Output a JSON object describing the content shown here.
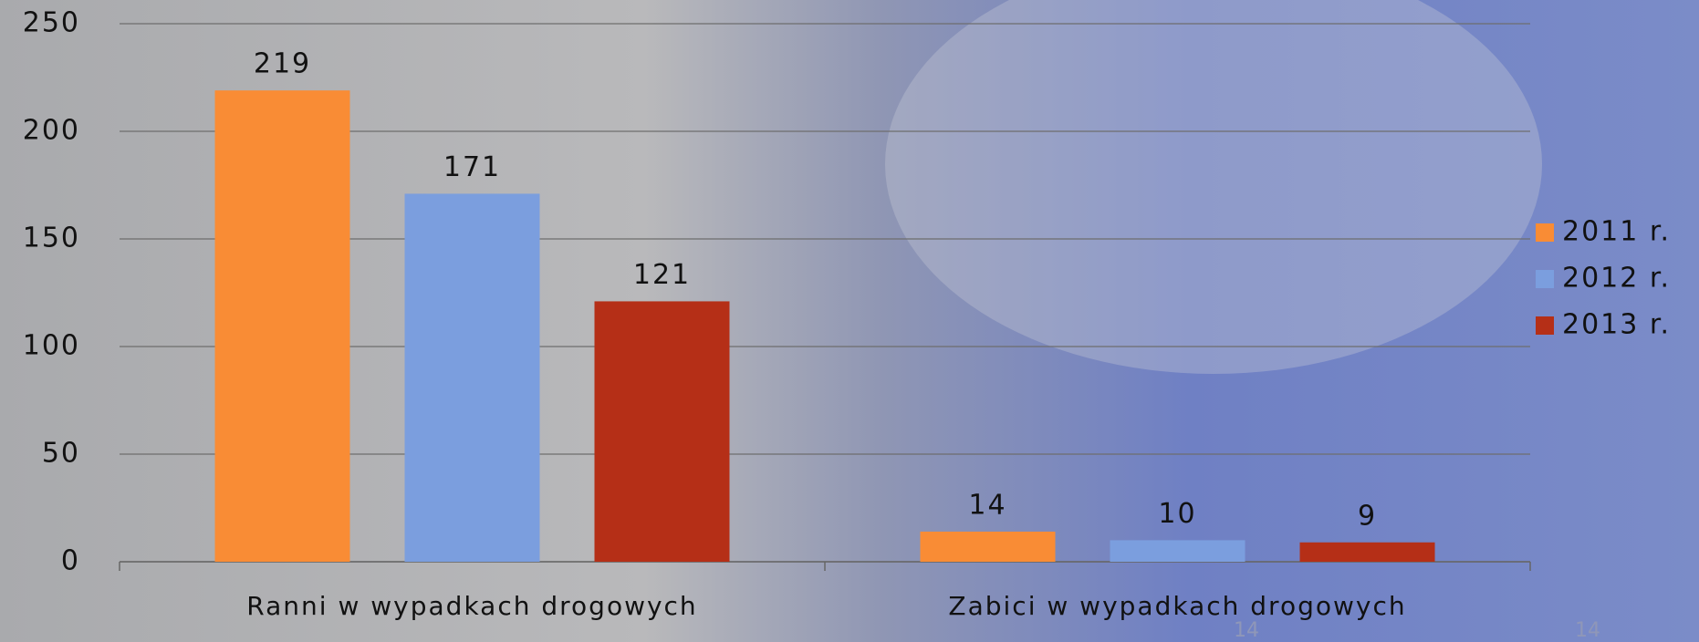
{
  "chart_data": {
    "type": "bar",
    "categories": [
      "Ranni w wypadkach drogowych",
      "Zabici w wypadkach drogowych"
    ],
    "series": [
      {
        "name": "2011 r.",
        "color": "#f98c35",
        "values": [
          219,
          14
        ]
      },
      {
        "name": "2012 r.",
        "color": "#7b9ede",
        "values": [
          171,
          10
        ]
      },
      {
        "name": "2013 r.",
        "color": "#b52f17",
        "values": [
          121,
          9
        ]
      }
    ],
    "ylim": [
      0,
      250
    ],
    "yticks": [
      0,
      50,
      100,
      150,
      200,
      250
    ],
    "grid": true,
    "legend": "right",
    "annotations": [
      "14",
      "14"
    ]
  }
}
